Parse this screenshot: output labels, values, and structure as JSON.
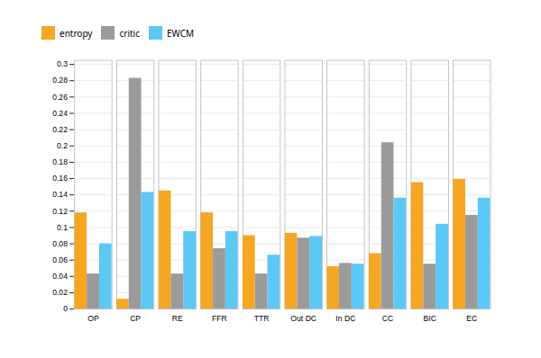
{
  "chart_data": {
    "type": "bar",
    "categories": [
      "OP",
      "CP",
      "RE",
      "FFR",
      "TTR",
      "Out DC",
      "In DC",
      "CC",
      "BIC",
      "EC"
    ],
    "series": [
      {
        "name": "entropy",
        "color": "#F5A623",
        "values": [
          0.118,
          0.012,
          0.145,
          0.118,
          0.09,
          0.093,
          0.052,
          0.068,
          0.155,
          0.159
        ]
      },
      {
        "name": "critic",
        "color": "#9B9B9B",
        "values": [
          0.043,
          0.283,
          0.043,
          0.074,
          0.043,
          0.087,
          0.056,
          0.204,
          0.055,
          0.115
        ]
      },
      {
        "name": "EWCM",
        "color": "#5BC8F5",
        "values": [
          0.08,
          0.143,
          0.095,
          0.095,
          0.066,
          0.089,
          0.055,
          0.136,
          0.104,
          0.136
        ]
      }
    ],
    "ylim": [
      0,
      0.305
    ],
    "yticks": [
      0,
      0.02,
      0.04,
      0.06,
      0.08,
      0.1,
      0.12,
      0.14,
      0.16,
      0.18,
      0.2,
      0.22,
      0.24,
      0.26,
      0.28,
      0.3
    ],
    "grid": true,
    "legend": "upper left"
  }
}
